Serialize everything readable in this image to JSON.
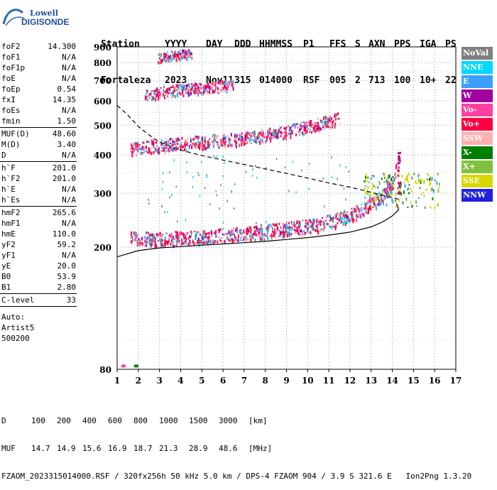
{
  "logo": {
    "line1": "Lowell",
    "line2": "DIGISONDE"
  },
  "header": {
    "row1": [
      "Station",
      "YYYY",
      "DAY",
      "DDD",
      "HHMMSS",
      "P1",
      "FFS",
      "S",
      "AXN",
      "PPS",
      "IGA",
      "PS"
    ],
    "row2": [
      "Fortaleza",
      "2023",
      "Nov11",
      "315",
      "014000",
      "RSF",
      "005",
      "2",
      "713",
      "100",
      "10+",
      "22"
    ]
  },
  "params": {
    "group1": [
      {
        "label": "foF2",
        "value": "14.300"
      },
      {
        "label": "foF1",
        "value": "N/A"
      },
      {
        "label": "foF1p",
        "value": "N/A"
      },
      {
        "label": "foE",
        "value": "N/A"
      },
      {
        "label": "foEp",
        "value": "0.54"
      },
      {
        "label": "fxI",
        "value": "14.35"
      },
      {
        "label": "foEs",
        "value": "N/A"
      },
      {
        "label": "fmin",
        "value": "1.50"
      }
    ],
    "group2": [
      {
        "label": "MUF(D)",
        "value": "48.60"
      },
      {
        "label": "M(D)",
        "value": "3.40"
      },
      {
        "label": "D",
        "value": "N/A"
      }
    ],
    "group3": [
      {
        "label": "h`F",
        "value": "201.0"
      },
      {
        "label": "h`F2",
        "value": "201.0"
      },
      {
        "label": "h`E",
        "value": "N/A"
      },
      {
        "label": "h`Es",
        "value": "N/A"
      }
    ],
    "group4": [
      {
        "label": "hmF2",
        "value": "265.6"
      },
      {
        "label": "hmF1",
        "value": "N/A"
      },
      {
        "label": "hmE",
        "value": "110.0"
      },
      {
        "label": "yF2",
        "value": "59.2"
      },
      {
        "label": "yF1",
        "value": "N/A"
      },
      {
        "label": "yE",
        "value": "20.0"
      },
      {
        "label": "B0",
        "value": "53.9"
      },
      {
        "label": "B1",
        "value": "2.80"
      }
    ],
    "group5": [
      {
        "label": "C-level",
        "value": "33"
      }
    ],
    "auto": [
      "Auto:",
      "Artist5",
      "500200"
    ]
  },
  "legend": [
    {
      "label": "NoVal",
      "color": "#808080"
    },
    {
      "label": "NNE",
      "color": "#00d8ff"
    },
    {
      "label": "E",
      "color": "#3aa0ff"
    },
    {
      "label": "W",
      "color": "#a000a0"
    },
    {
      "label": "Vo-",
      "color": "#ff40a0"
    },
    {
      "label": "Vo+",
      "color": "#ff0040"
    },
    {
      "label": "SSW",
      "color": "#ffb0b0"
    },
    {
      "label": "X-",
      "color": "#008000"
    },
    {
      "label": "X+",
      "color": "#80c040"
    },
    {
      "label": "SSE",
      "color": "#d8d800"
    },
    {
      "label": "NNW",
      "color": "#2020e0"
    }
  ],
  "footer": {
    "d_label": "D",
    "d_values": [
      "100",
      "200",
      "400",
      "600",
      "800",
      "1000",
      "1500",
      "3000"
    ],
    "d_unit": "[km]",
    "muf_label": "MUF",
    "muf_values": [
      "14.7",
      "14.9",
      "15.6",
      "16.9",
      "18.7",
      "21.3",
      "28.9",
      "48.6"
    ],
    "muf_unit": "[MHz]",
    "info": "FZAOM_2023315014000.RSF / 320fx256h 50 kHz 5.0 km / DPS-4 FZAOM 904 / 3.9 S 321.6 E   Ion2Png 1.3.20"
  },
  "chart_data": {
    "type": "scatter",
    "xlim": [
      1,
      17
    ],
    "xticks": [
      "1",
      "2",
      "3",
      "4",
      "5",
      "6",
      "7",
      "8",
      "9",
      "10",
      "11",
      "12",
      "13",
      "14",
      "15",
      "16",
      "17"
    ],
    "ylim": [
      80,
      900
    ],
    "yscale": "log",
    "yticks": [
      "80",
      "200",
      "300",
      "400",
      "500",
      "600",
      "700",
      "800",
      "900"
    ],
    "grid": "dotted",
    "echo_traces": [
      {
        "name": "F2 trace (1st hop)",
        "x": [
          1.6,
          2.5,
          3.5,
          4.5,
          5.5,
          6.5,
          7.5,
          8.5,
          9.5,
          10.5,
          11.5,
          12.0,
          12.5,
          13.0,
          13.5,
          14.0,
          14.3
        ],
        "y": [
          215,
          213,
          214,
          216,
          218,
          221,
          224,
          228,
          233,
          238,
          248,
          256,
          266,
          278,
          295,
          325,
          385
        ]
      },
      {
        "name": "F2 trace (2nd hop)",
        "x": [
          1.6,
          2.5,
          3.5,
          4.5,
          5.5,
          6.5,
          7.5,
          8.5,
          9.5,
          10.5,
          11.5
        ],
        "y": [
          418,
          427,
          434,
          440,
          446,
          452,
          460,
          472,
          487,
          505,
          530
        ]
      },
      {
        "name": "F2 trace (3rd hop)",
        "x": [
          2.3,
          3.0,
          4.0,
          5.0,
          6.0,
          6.5
        ],
        "y": [
          625,
          645,
          655,
          662,
          672,
          680
        ]
      },
      {
        "name": "F2 trace (4th hop)",
        "x": [
          2.9,
          3.5,
          4.0,
          4.5
        ],
        "y": [
          830,
          845,
          855,
          862
        ]
      }
    ],
    "profile_curves": [
      {
        "name": "true height profile",
        "style": "solid",
        "x": [
          1.0,
          2.0,
          3.0,
          4.0,
          5.0,
          6.0,
          7.0,
          8.0,
          9.0,
          10.0,
          11.0,
          12.0,
          13.0,
          13.5,
          14.0,
          14.3,
          14.2
        ],
        "y": [
          186,
          195,
          199,
          201,
          203,
          205,
          207,
          209,
          212,
          215,
          219,
          224,
          233,
          241,
          253,
          265,
          278
        ]
      },
      {
        "name": "MUF curve",
        "style": "dashed",
        "x": [
          1.0,
          1.5,
          2.0,
          2.5,
          3.0,
          4.0,
          5.0,
          6.0,
          7.0,
          8.0,
          9.0,
          10.0,
          11.0,
          12.0,
          13.0,
          13.8,
          14.3
        ],
        "y": [
          580,
          540,
          495,
          465,
          440,
          415,
          398,
          385,
          372,
          360,
          348,
          336,
          324,
          314,
          302,
          292,
          287
        ]
      }
    ],
    "extra_echoes": [
      {
        "x": 1.2,
        "y": 82,
        "color": "#ff40a0"
      },
      {
        "x": 1.8,
        "y": 82,
        "color": "#008000"
      }
    ]
  }
}
